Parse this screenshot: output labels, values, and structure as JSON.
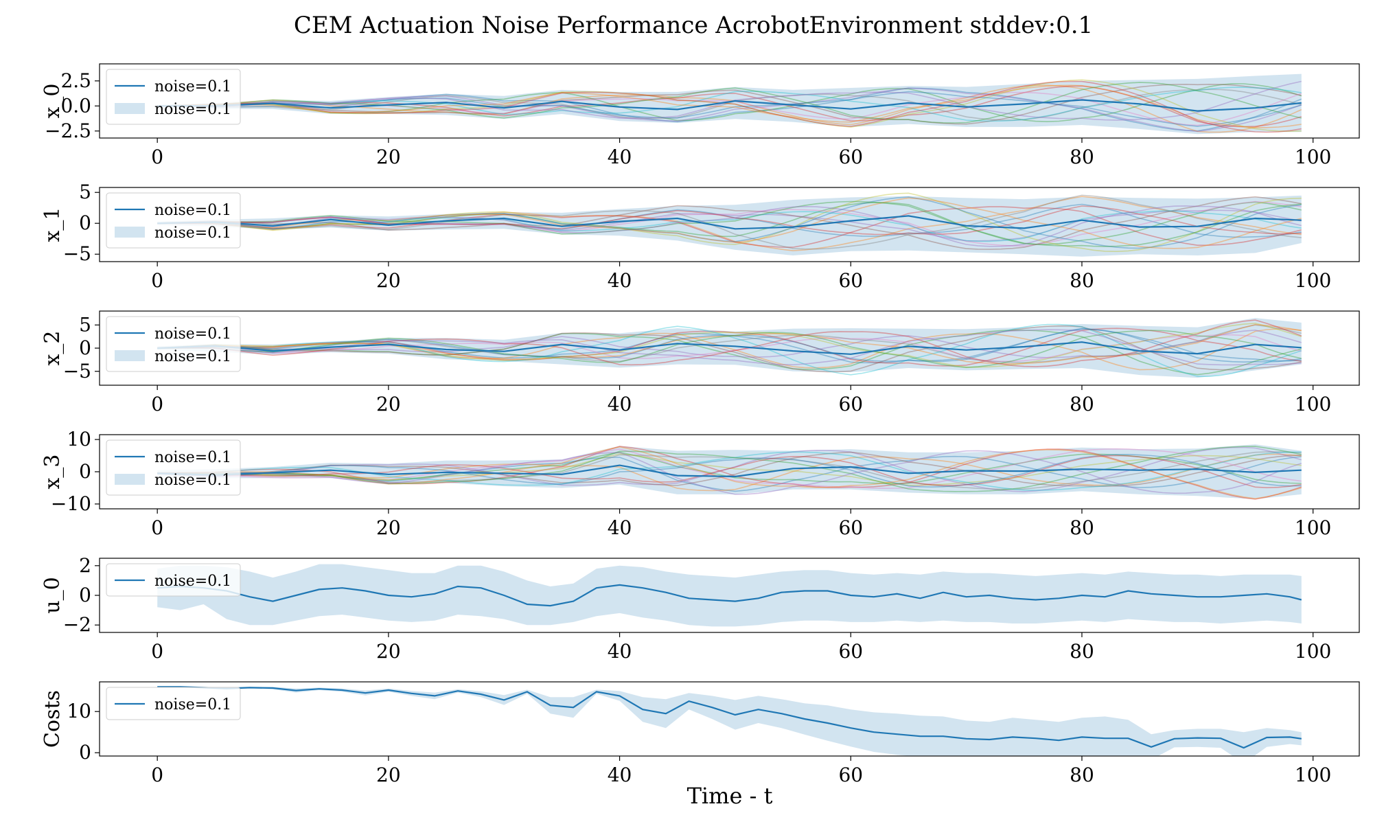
{
  "figure": {
    "title": "CEM Actuation Noise Performance AcrobotEnvironment stddev:0.1",
    "xlabel": "Time - t"
  },
  "colors": {
    "mean_line": "#1f77b4",
    "band": "#1f77b4",
    "rollouts": [
      "#1f77b4",
      "#ff7f0e",
      "#2ca02c",
      "#d62728",
      "#9467bd",
      "#8c564b",
      "#e377c2",
      "#7f7f7f",
      "#bcbd22",
      "#17becf"
    ]
  },
  "chart_data": [
    {
      "type": "line",
      "ylabel": "x_0",
      "xlim": [
        -5,
        104
      ],
      "ylim": [
        -3.2,
        4.2
      ],
      "xticks": [
        "0",
        "20",
        "40",
        "60",
        "80",
        "100"
      ],
      "xtick_values": [
        0,
        20,
        40,
        60,
        80,
        100
      ],
      "yticks": [
        "2.5",
        "0.0",
        "−2.5"
      ],
      "ytick_values": [
        2.5,
        0.0,
        -2.5
      ],
      "legend": [
        "noise=0.1",
        "noise=0.1"
      ],
      "legend_position": "upper-left",
      "rollout_count": 15,
      "x": [
        0,
        5,
        10,
        15,
        20,
        25,
        30,
        35,
        40,
        45,
        50,
        55,
        60,
        65,
        70,
        75,
        80,
        85,
        90,
        95,
        99
      ],
      "series": [
        {
          "role": "mean",
          "values": [
            0.0,
            0.02,
            0.25,
            -0.2,
            0.1,
            0.35,
            -0.2,
            0.45,
            -0.1,
            -0.35,
            0.5,
            0.1,
            -0.3,
            0.3,
            -0.1,
            0.2,
            0.6,
            0.2,
            -0.5,
            -0.2,
            0.3
          ]
        },
        {
          "role": "band_upper",
          "values": [
            0.1,
            0.3,
            0.6,
            0.5,
            0.9,
            1.2,
            1.0,
            1.6,
            1.4,
            1.4,
            1.9,
            1.6,
            1.8,
            2.0,
            1.9,
            2.2,
            2.5,
            2.6,
            2.7,
            3.0,
            3.2
          ]
        },
        {
          "role": "band_lower",
          "values": [
            -0.1,
            -0.3,
            -0.3,
            -0.8,
            -0.8,
            -0.9,
            -1.3,
            -0.8,
            -1.5,
            -1.7,
            -1.3,
            -1.6,
            -2.1,
            -1.8,
            -2.1,
            -2.1,
            -1.9,
            -2.3,
            -2.8,
            -2.6,
            -2.6
          ]
        }
      ]
    },
    {
      "type": "line",
      "ylabel": "x_1",
      "xlim": [
        -5,
        104
      ],
      "ylim": [
        -6.2,
        5.8
      ],
      "xticks": [
        "0",
        "20",
        "40",
        "60",
        "80",
        "100"
      ],
      "xtick_values": [
        0,
        20,
        40,
        60,
        80,
        100
      ],
      "yticks": [
        "5",
        "0",
        "−5"
      ],
      "ytick_values": [
        5,
        0,
        -5
      ],
      "legend": [
        "noise=0.1",
        "noise=0.1"
      ],
      "legend_position": "upper-left",
      "rollout_count": 15,
      "x": [
        0,
        5,
        10,
        15,
        20,
        25,
        30,
        35,
        40,
        45,
        50,
        55,
        60,
        65,
        70,
        75,
        80,
        85,
        90,
        95,
        99
      ],
      "series": [
        {
          "role": "mean",
          "values": [
            0.0,
            0.2,
            -0.4,
            0.6,
            -0.3,
            0.4,
            0.8,
            -0.5,
            0.3,
            0.8,
            -0.9,
            -0.6,
            0.4,
            1.2,
            -0.4,
            -0.8,
            0.5,
            -0.6,
            -0.5,
            0.8,
            0.5
          ]
        },
        {
          "role": "band_upper",
          "values": [
            0.3,
            0.6,
            0.8,
            1.3,
            1.1,
            1.5,
            1.8,
            1.7,
            2.3,
            2.8,
            3.0,
            3.8,
            4.2,
            4.4,
            4.1,
            3.9,
            4.3,
            4.1,
            4.0,
            4.2,
            4.5
          ]
        },
        {
          "role": "band_lower",
          "values": [
            -0.3,
            -0.5,
            -1.0,
            -0.7,
            -1.2,
            -1.0,
            -0.9,
            -1.8,
            -2.0,
            -2.8,
            -4.3,
            -5.2,
            -4.5,
            -4.4,
            -4.7,
            -5.0,
            -5.4,
            -5.0,
            -5.2,
            -4.8,
            -3.2
          ]
        }
      ]
    },
    {
      "type": "line",
      "ylabel": "x_2",
      "xlim": [
        -5,
        104
      ],
      "ylim": [
        -8.0,
        8.0
      ],
      "xticks": [
        "0",
        "20",
        "40",
        "60",
        "80",
        "100"
      ],
      "xtick_values": [
        0,
        20,
        40,
        60,
        80,
        100
      ],
      "yticks": [
        "5",
        "0",
        "−5"
      ],
      "ytick_values": [
        5,
        0,
        -5
      ],
      "legend": [
        "noise=0.1",
        "noise=0.1"
      ],
      "legend_position": "upper-left",
      "rollout_count": 15,
      "x": [
        0,
        5,
        10,
        15,
        20,
        25,
        30,
        35,
        40,
        45,
        50,
        55,
        60,
        65,
        70,
        75,
        80,
        85,
        90,
        95,
        99
      ],
      "series": [
        {
          "role": "mean",
          "values": [
            0.0,
            0.5,
            -0.6,
            0.2,
            0.8,
            -0.3,
            -0.7,
            0.8,
            -0.4,
            1.0,
            0.4,
            -0.6,
            -1.3,
            0.4,
            -0.4,
            0.3,
            1.3,
            -0.6,
            -1.2,
            0.8,
            0.1
          ]
        },
        {
          "role": "band_upper",
          "values": [
            0.4,
            0.9,
            0.8,
            1.4,
            2.2,
            2.2,
            1.8,
            3.3,
            3.2,
            4.3,
            3.6,
            4.2,
            4.3,
            4.2,
            4.1,
            4.5,
            5.2,
            4.8,
            4.5,
            6.5,
            5.5
          ]
        },
        {
          "role": "band_lower",
          "values": [
            -0.4,
            -0.8,
            -1.4,
            -0.9,
            -1.2,
            -2.4,
            -2.8,
            -3.5,
            -4.2,
            -3.5,
            -3.6,
            -5.0,
            -5.2,
            -4.3,
            -4.8,
            -4.5,
            -4.3,
            -5.8,
            -6.4,
            -4.8,
            -3.5
          ]
        }
      ]
    },
    {
      "type": "line",
      "ylabel": "x_3",
      "xlim": [
        -5,
        104
      ],
      "ylim": [
        -11.5,
        11.5
      ],
      "xticks": [
        "0",
        "20",
        "40",
        "60",
        "80",
        "100"
      ],
      "xtick_values": [
        0,
        20,
        40,
        60,
        80,
        100
      ],
      "yticks": [
        "10",
        "0",
        "−10"
      ],
      "ytick_values": [
        10,
        0,
        -10
      ],
      "legend": [
        "noise=0.1",
        "noise=0.1"
      ],
      "legend_position": "upper-left",
      "rollout_count": 15,
      "x": [
        0,
        5,
        10,
        15,
        20,
        25,
        30,
        35,
        40,
        45,
        50,
        55,
        60,
        65,
        70,
        75,
        80,
        85,
        90,
        95,
        99
      ],
      "series": [
        {
          "role": "mean",
          "values": [
            -0.5,
            -1.0,
            -0.3,
            0.5,
            -0.8,
            -0.2,
            -0.5,
            -0.8,
            2.0,
            -1.2,
            -1.5,
            1.0,
            1.5,
            -0.5,
            0.3,
            0.2,
            0.8,
            0.5,
            0.8,
            -0.2,
            0.5
          ]
        },
        {
          "role": "band_upper",
          "values": [
            0.5,
            0.8,
            1.5,
            2.8,
            2.5,
            3.5,
            3.5,
            3.8,
            8.0,
            6.5,
            6.8,
            6.5,
            7.0,
            6.0,
            6.0,
            6.5,
            7.5,
            7.0,
            7.2,
            8.5,
            6.5
          ]
        },
        {
          "role": "band_lower",
          "values": [
            -1.5,
            -2.0,
            -2.0,
            -2.0,
            -3.8,
            -3.5,
            -4.5,
            -5.0,
            -4.0,
            -7.0,
            -7.0,
            -5.5,
            -5.5,
            -6.5,
            -7.0,
            -7.0,
            -6.0,
            -7.0,
            -7.5,
            -8.5,
            -7.0
          ]
        }
      ]
    },
    {
      "type": "line",
      "ylabel": "u_0",
      "xlim": [
        -5,
        104
      ],
      "ylim": [
        -2.5,
        2.5
      ],
      "xticks": [
        "0",
        "20",
        "40",
        "60",
        "80",
        "100"
      ],
      "xtick_values": [
        0,
        20,
        40,
        60,
        80,
        100
      ],
      "yticks": [
        "2",
        "0",
        "−2"
      ],
      "ytick_values": [
        2,
        0,
        -2
      ],
      "legend": [
        "noise=0.1"
      ],
      "legend_position": "upper-left",
      "rollout_count": 0,
      "x": [
        0,
        2,
        4,
        6,
        8,
        10,
        12,
        14,
        16,
        18,
        20,
        22,
        24,
        26,
        28,
        30,
        32,
        34,
        36,
        38,
        40,
        42,
        44,
        46,
        48,
        50,
        52,
        54,
        56,
        58,
        60,
        62,
        64,
        66,
        68,
        70,
        72,
        74,
        76,
        78,
        80,
        82,
        84,
        86,
        88,
        90,
        92,
        94,
        96,
        98,
        99
      ],
      "series": [
        {
          "role": "mean",
          "values": [
            0.5,
            0.6,
            0.5,
            0.3,
            -0.1,
            -0.4,
            0.0,
            0.4,
            0.5,
            0.3,
            0.0,
            -0.1,
            0.1,
            0.6,
            0.5,
            0.0,
            -0.6,
            -0.7,
            -0.4,
            0.5,
            0.7,
            0.5,
            0.2,
            -0.2,
            -0.3,
            -0.4,
            -0.2,
            0.2,
            0.3,
            0.3,
            0.0,
            -0.1,
            0.1,
            -0.2,
            0.2,
            -0.1,
            0.0,
            -0.2,
            -0.3,
            -0.2,
            0.0,
            -0.1,
            0.3,
            0.1,
            0.0,
            -0.1,
            -0.1,
            0.0,
            0.1,
            -0.1,
            -0.3
          ]
        },
        {
          "role": "band_upper",
          "values": [
            1.8,
            2.0,
            2.0,
            1.9,
            1.6,
            1.2,
            1.6,
            2.1,
            2.1,
            1.9,
            1.7,
            1.5,
            1.5,
            2.0,
            2.0,
            1.6,
            1.0,
            0.6,
            0.8,
            1.8,
            2.0,
            1.9,
            1.6,
            1.4,
            1.3,
            1.2,
            1.4,
            1.6,
            1.7,
            1.7,
            1.5,
            1.4,
            1.5,
            1.4,
            1.6,
            1.5,
            1.5,
            1.4,
            1.3,
            1.4,
            1.5,
            1.4,
            1.6,
            1.5,
            1.4,
            1.4,
            1.3,
            1.4,
            1.4,
            1.4,
            1.3
          ]
        },
        {
          "role": "band_lower",
          "values": [
            -0.8,
            -1.0,
            -0.6,
            -1.6,
            -2.0,
            -2.0,
            -1.7,
            -1.4,
            -1.3,
            -1.5,
            -1.7,
            -1.8,
            -1.7,
            -1.3,
            -1.4,
            -1.6,
            -2.0,
            -2.0,
            -1.8,
            -1.4,
            -1.2,
            -1.5,
            -1.7,
            -2.0,
            -2.1,
            -2.1,
            -2.0,
            -1.8,
            -1.7,
            -1.7,
            -1.8,
            -1.8,
            -1.7,
            -1.8,
            -1.7,
            -1.8,
            -1.8,
            -1.9,
            -1.9,
            -1.8,
            -1.7,
            -1.8,
            -1.6,
            -1.7,
            -1.8,
            -1.8,
            -1.9,
            -1.8,
            -1.7,
            -1.8,
            -1.9
          ]
        }
      ]
    },
    {
      "type": "line",
      "ylabel": "Costs",
      "xlim": [
        -5,
        104
      ],
      "ylim": [
        -0.8,
        17.2
      ],
      "xticks": [
        "0",
        "20",
        "40",
        "60",
        "80",
        "100"
      ],
      "xtick_values": [
        0,
        20,
        40,
        60,
        80,
        100
      ],
      "yticks": [
        "10",
        "0"
      ],
      "ytick_values": [
        10,
        0
      ],
      "legend": [
        "noise=0.1"
      ],
      "legend_position": "upper-left",
      "rollout_count": 0,
      "x": [
        0,
        2,
        4,
        6,
        8,
        10,
        12,
        14,
        16,
        18,
        20,
        22,
        24,
        26,
        28,
        30,
        32,
        34,
        36,
        38,
        40,
        42,
        44,
        46,
        48,
        50,
        52,
        54,
        56,
        58,
        60,
        62,
        64,
        66,
        68,
        70,
        72,
        74,
        76,
        78,
        80,
        82,
        84,
        86,
        88,
        90,
        92,
        94,
        96,
        98,
        99
      ],
      "series": [
        {
          "role": "mean",
          "values": [
            16.0,
            16.0,
            15.8,
            15.6,
            15.8,
            15.7,
            15.1,
            15.5,
            15.2,
            14.5,
            15.2,
            14.4,
            13.8,
            15.0,
            14.2,
            12.8,
            14.8,
            11.5,
            11.0,
            14.8,
            13.8,
            10.5,
            9.5,
            12.5,
            11.0,
            9.2,
            10.5,
            9.5,
            8.2,
            7.2,
            6.0,
            5.0,
            4.5,
            4.0,
            4.0,
            3.4,
            3.2,
            3.8,
            3.5,
            3.0,
            3.8,
            3.5,
            3.5,
            1.4,
            3.4,
            3.6,
            3.5,
            1.2,
            3.7,
            3.8,
            3.4
          ]
        },
        {
          "role": "band_upper",
          "values": [
            16.1,
            16.1,
            16.0,
            15.9,
            16.0,
            16.0,
            15.6,
            15.8,
            15.6,
            15.1,
            15.6,
            15.0,
            14.6,
            15.4,
            14.9,
            14.0,
            15.3,
            13.5,
            13.5,
            15.3,
            15.0,
            13.5,
            13.0,
            14.5,
            13.8,
            12.8,
            13.8,
            13.0,
            12.0,
            11.5,
            10.5,
            9.8,
            9.5,
            9.0,
            8.8,
            7.8,
            7.5,
            8.5,
            8.0,
            7.5,
            8.5,
            8.8,
            8.0,
            4.5,
            5.5,
            5.8,
            5.8,
            5.0,
            6.0,
            5.5,
            5.0
          ]
        },
        {
          "role": "band_lower",
          "values": [
            15.9,
            15.9,
            15.6,
            15.3,
            15.6,
            15.4,
            14.6,
            15.2,
            14.8,
            13.9,
            14.8,
            13.8,
            13.0,
            14.6,
            13.5,
            11.6,
            14.3,
            9.5,
            8.5,
            14.3,
            12.6,
            7.5,
            6.0,
            10.5,
            8.2,
            5.6,
            7.2,
            6.0,
            4.4,
            2.9,
            1.5,
            0.2,
            -0.5,
            -1.0,
            -0.8,
            -1.0,
            -1.1,
            -0.9,
            -1.0,
            -1.5,
            -0.9,
            -1.8,
            -1.0,
            -1.7,
            1.3,
            1.4,
            1.2,
            -2.6,
            1.4,
            2.1,
            1.8
          ]
        }
      ]
    }
  ]
}
